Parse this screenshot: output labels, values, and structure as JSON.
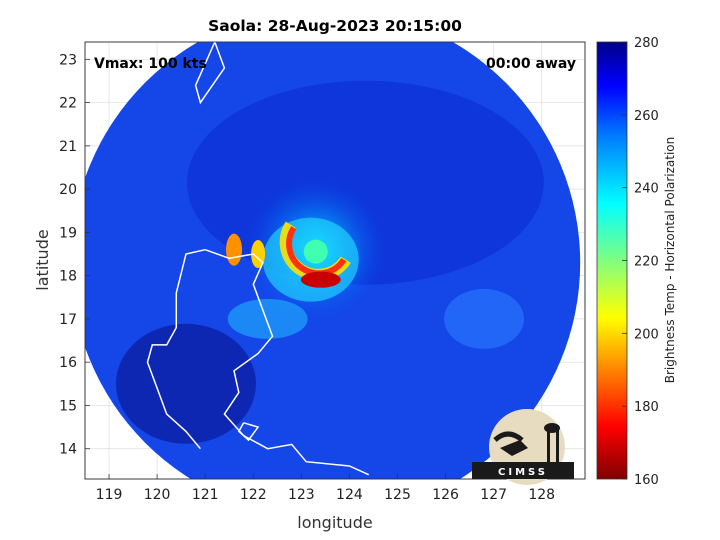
{
  "chart_data": {
    "type": "heatmap",
    "title": "Saola: 28-Aug-2023 20:15:00",
    "xlabel": "longitude",
    "ylabel": "latitude",
    "xlim": [
      118.5,
      128.9
    ],
    "ylim": [
      13.3,
      23.4
    ],
    "xticks": [
      "119",
      "120",
      "121",
      "122",
      "123",
      "124",
      "125",
      "126",
      "127",
      "128"
    ],
    "yticks": [
      "14",
      "15",
      "16",
      "17",
      "18",
      "19",
      "20",
      "21",
      "22",
      "23"
    ],
    "grid": true,
    "annotations": {
      "vmax": "Vmax: 100 kts",
      "away": "00:00 away"
    },
    "swath": {
      "center_lon": 123.5,
      "center_lat": 18.3,
      "radius_deg": 5.3
    },
    "storm_center": {
      "lon": 123.3,
      "lat": 18.6
    },
    "colorbar": {
      "label": "Brightness Temp - Horizontal Polarization",
      "min": 160,
      "max": 280,
      "ticks": [
        "160",
        "180",
        "200",
        "220",
        "240",
        "260",
        "280"
      ]
    },
    "logo_text": "CIMSS"
  }
}
